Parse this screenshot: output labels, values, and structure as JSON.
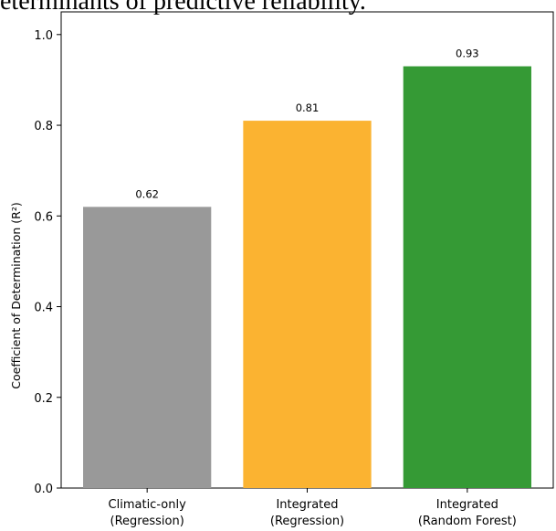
{
  "caption": "eterminants of predictive reliability.",
  "chart_data": {
    "type": "bar",
    "categories": [
      [
        "Climatic-only",
        "(Regression)"
      ],
      [
        "Integrated",
        "(Regression)"
      ],
      [
        "Integrated",
        "(Random Forest)"
      ]
    ],
    "values": [
      0.62,
      0.81,
      0.93
    ],
    "value_labels": [
      "0.62",
      "0.81",
      "0.93"
    ],
    "colors": [
      "#999999",
      "#fbb331",
      "#359a35"
    ],
    "title": "",
    "xlabel": "",
    "ylabel": "Coefficient of Determination (R²)",
    "ylim": [
      0,
      1.05
    ],
    "yticks": [
      0.0,
      0.2,
      0.4,
      0.6,
      0.8,
      1.0
    ],
    "ytick_labels": [
      "0.0",
      "0.2",
      "0.4",
      "0.6",
      "0.8",
      "1.0"
    ],
    "grid": false,
    "legend": "none"
  }
}
